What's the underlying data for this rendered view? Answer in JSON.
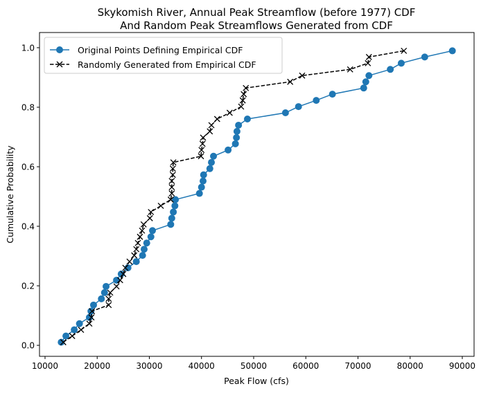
{
  "chart_data": {
    "type": "line",
    "title": [
      "Skykomish River, Annual Peak Streamflow (before 1977) CDF",
      "And Random Peak Streamflows Generated from CDF"
    ],
    "xlabel": "Peak Flow (cfs)",
    "ylabel": "Cumulative Probability",
    "xlim": [
      8940,
      92260
    ],
    "ylim": [
      -0.037,
      1.051
    ],
    "xticks": [
      10000,
      20000,
      30000,
      40000,
      50000,
      60000,
      70000,
      80000,
      90000
    ],
    "xtick_labels": [
      "10000",
      "20000",
      "30000",
      "40000",
      "50000",
      "60000",
      "70000",
      "80000",
      "90000"
    ],
    "yticks": [
      0.0,
      0.2,
      0.4,
      0.6,
      0.8,
      1.0
    ],
    "ytick_labels": [
      "0.0",
      "0.2",
      "0.4",
      "0.6",
      "0.8",
      "1.0"
    ],
    "grid": false,
    "legend_position": "top-left",
    "series": [
      {
        "name": "Original Points Defining Empirical CDF",
        "color": "#1f77b4",
        "marker": "circle",
        "linestyle": "solid",
        "x": [
          13100,
          14000,
          15600,
          16600,
          18500,
          18800,
          19300,
          20800,
          21400,
          21700,
          23700,
          24600,
          25900,
          27500,
          28700,
          29000,
          29500,
          30300,
          30600,
          34100,
          34300,
          34600,
          34900,
          35000,
          39600,
          40000,
          40300,
          40400,
          41600,
          41900,
          42300,
          45100,
          46500,
          46700,
          46800,
          47100,
          48800,
          56100,
          58600,
          62000,
          65100,
          71100,
          71500,
          72100,
          76200,
          78300,
          82800,
          88100
        ],
        "y": [
          0.0104,
          0.0313,
          0.0521,
          0.0729,
          0.0938,
          0.1146,
          0.1354,
          0.1563,
          0.1771,
          0.1979,
          0.2188,
          0.2396,
          0.2604,
          0.2813,
          0.3021,
          0.3229,
          0.3438,
          0.3646,
          0.3854,
          0.4063,
          0.4271,
          0.4479,
          0.4688,
          0.4896,
          0.5104,
          0.5313,
          0.5521,
          0.5729,
          0.5938,
          0.6146,
          0.6354,
          0.6563,
          0.6771,
          0.6979,
          0.7188,
          0.7396,
          0.7604,
          0.7813,
          0.8021,
          0.8229,
          0.8438,
          0.8646,
          0.8854,
          0.9063,
          0.9271,
          0.9479,
          0.9688,
          0.9896
        ]
      },
      {
        "name": "Randomly Generated from Empirical CDF",
        "color": "#000000",
        "marker": "x",
        "linestyle": "dashed",
        "x": [
          13500,
          15200,
          16900,
          18500,
          18900,
          19000,
          22200,
          22200,
          22500,
          23700,
          24400,
          25000,
          25400,
          26200,
          27100,
          27500,
          27800,
          28200,
          28600,
          28900,
          30100,
          30300,
          32200,
          34100,
          34300,
          34300,
          34300,
          34500,
          34500,
          34600,
          39900,
          40000,
          40200,
          40300,
          41600,
          41900,
          43000,
          45400,
          47600,
          47900,
          48100,
          48500,
          57000,
          59300,
          68500,
          71900,
          72100,
          78800
        ],
        "y": [
          0.0104,
          0.0313,
          0.0521,
          0.0729,
          0.0938,
          0.1146,
          0.1354,
          0.1563,
          0.1771,
          0.1979,
          0.2188,
          0.2396,
          0.2604,
          0.2813,
          0.3021,
          0.3229,
          0.3438,
          0.3646,
          0.3854,
          0.4063,
          0.4271,
          0.4479,
          0.4688,
          0.4896,
          0.5104,
          0.5313,
          0.5521,
          0.5729,
          0.5938,
          0.6146,
          0.6354,
          0.6563,
          0.6771,
          0.6979,
          0.7188,
          0.7396,
          0.7604,
          0.7813,
          0.8021,
          0.8229,
          0.8438,
          0.8646,
          0.8854,
          0.9063,
          0.9271,
          0.9479,
          0.9688,
          0.9896
        ]
      }
    ]
  }
}
